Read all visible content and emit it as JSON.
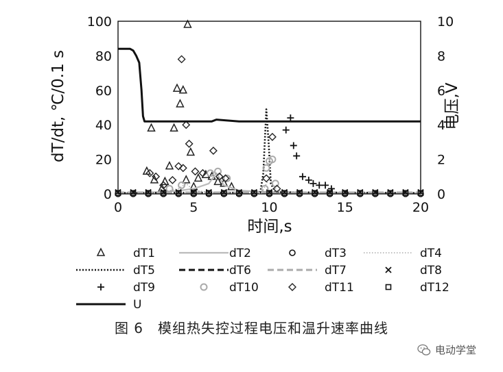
{
  "caption": "图 6　模组热失控过程电压和温升速率曲线",
  "watermark": {
    "text": "电动学堂",
    "icon": "wechat-icon"
  },
  "chart_data": {
    "type": "scatter",
    "xlabel": "时间,s",
    "ylabel_left": "dT/dt, ℃/0.1 s",
    "ylabel_right": "电压,V",
    "xlim": [
      0,
      20
    ],
    "ylim_left": [
      0,
      100
    ],
    "ylim_right": [
      0,
      10
    ],
    "xticks": [
      "0",
      "5",
      "10",
      "15",
      "20"
    ],
    "yticks_left": [
      "0",
      "20",
      "40",
      "60",
      "80",
      "100"
    ],
    "yticks_right": [
      "0",
      "2",
      "4",
      "6",
      "8",
      "10"
    ],
    "grid": false,
    "legend_position": "bottom",
    "series": [
      {
        "name": "dT1",
        "marker": "triangle",
        "axis": "left",
        "points": [
          [
            1.9,
            13
          ],
          [
            2.2,
            38
          ],
          [
            2.4,
            8
          ],
          [
            2.9,
            3
          ],
          [
            3.1,
            7
          ],
          [
            3.4,
            16
          ],
          [
            3.7,
            38
          ],
          [
            3.9,
            61
          ],
          [
            4.1,
            52
          ],
          [
            4.3,
            60
          ],
          [
            4.5,
            8
          ],
          [
            4.6,
            98
          ],
          [
            4.8,
            24
          ],
          [
            5.0,
            4
          ],
          [
            5.3,
            9
          ],
          [
            5.8,
            11
          ],
          [
            6.2,
            10
          ],
          [
            6.6,
            7
          ],
          [
            7.0,
            6
          ],
          [
            7.5,
            4
          ]
        ]
      },
      {
        "name": "dT2",
        "line": "solid-gray",
        "axis": "left",
        "points": [
          [
            0,
            0.5
          ],
          [
            1,
            0.6
          ],
          [
            2,
            0.8
          ],
          [
            3,
            1.2
          ],
          [
            4,
            1.8
          ],
          [
            5,
            3
          ],
          [
            6,
            6
          ],
          [
            6.5,
            12
          ],
          [
            7,
            5
          ],
          [
            8,
            2
          ],
          [
            10,
            1
          ],
          [
            12,
            0.6
          ],
          [
            20,
            0.5
          ]
        ]
      },
      {
        "name": "dT3",
        "marker": "circle",
        "axis": "left",
        "points": [
          [
            0,
            0
          ],
          [
            1,
            0
          ],
          [
            2,
            0
          ],
          [
            3,
            0
          ],
          [
            4,
            0
          ],
          [
            5,
            0
          ],
          [
            6,
            0
          ],
          [
            7,
            0
          ],
          [
            8,
            0
          ],
          [
            9,
            0
          ],
          [
            10,
            0
          ],
          [
            11,
            0
          ],
          [
            12,
            0
          ],
          [
            13,
            0
          ],
          [
            14,
            0
          ],
          [
            15,
            0
          ],
          [
            16,
            0
          ],
          [
            17,
            0
          ],
          [
            18,
            0
          ],
          [
            19,
            0
          ],
          [
            20,
            0
          ]
        ]
      },
      {
        "name": "dT4",
        "line": "dotted-gray",
        "axis": "left",
        "points": [
          [
            0,
            0.5
          ],
          [
            3,
            1
          ],
          [
            4,
            3
          ],
          [
            4.5,
            6
          ],
          [
            5,
            2
          ],
          [
            6,
            1
          ],
          [
            9.5,
            1
          ],
          [
            10,
            9
          ],
          [
            10.5,
            2
          ],
          [
            12,
            0.8
          ],
          [
            20,
            0.5
          ]
        ]
      },
      {
        "name": "dT5",
        "line": "dotted-black",
        "axis": "left",
        "points": [
          [
            0,
            0.5
          ],
          [
            9.4,
            0.8
          ],
          [
            9.6,
            12
          ],
          [
            9.8,
            49
          ],
          [
            9.95,
            30
          ],
          [
            10.1,
            6
          ],
          [
            10.4,
            1
          ],
          [
            20,
            0.5
          ]
        ]
      },
      {
        "name": "dT6",
        "line": "dashed-black",
        "axis": "left",
        "points": [
          [
            0,
            0.5
          ],
          [
            20,
            0.5
          ]
        ]
      },
      {
        "name": "dT7",
        "line": "dashed-gray",
        "axis": "left",
        "points": [
          [
            0,
            0.8
          ],
          [
            20,
            0.8
          ]
        ]
      },
      {
        "name": "dT8",
        "marker": "x",
        "axis": "left",
        "points": [
          [
            0,
            1
          ],
          [
            1,
            1
          ],
          [
            2,
            1
          ],
          [
            3,
            1
          ],
          [
            4,
            1
          ],
          [
            5,
            1
          ],
          [
            6,
            1
          ],
          [
            7,
            1
          ],
          [
            8,
            1
          ],
          [
            9,
            1
          ],
          [
            10,
            1
          ],
          [
            11,
            1
          ],
          [
            12,
            1
          ],
          [
            13,
            1
          ],
          [
            14,
            1
          ],
          [
            15,
            1
          ],
          [
            16,
            1
          ],
          [
            17,
            1
          ],
          [
            18,
            1
          ],
          [
            19,
            1
          ],
          [
            20,
            1
          ]
        ]
      },
      {
        "name": "dT9",
        "marker": "plus",
        "axis": "left",
        "points": [
          [
            11.1,
            37
          ],
          [
            11.4,
            44
          ],
          [
            11.6,
            28
          ],
          [
            11.8,
            22
          ],
          [
            12.2,
            10
          ],
          [
            12.6,
            8
          ],
          [
            12.9,
            6
          ],
          [
            13.3,
            5
          ],
          [
            13.7,
            5
          ],
          [
            14.1,
            3
          ]
        ]
      },
      {
        "name": "dT10",
        "marker": "circle-gray",
        "axis": "left",
        "points": [
          [
            3.4,
            3
          ],
          [
            4.2,
            5
          ],
          [
            6.1,
            12
          ],
          [
            6.6,
            13
          ],
          [
            7.2,
            9
          ],
          [
            9.7,
            3
          ],
          [
            9.8,
            15
          ],
          [
            10.0,
            19
          ],
          [
            10.2,
            20
          ],
          [
            10.4,
            6
          ]
        ]
      },
      {
        "name": "dT11",
        "marker": "diamond",
        "axis": "left",
        "points": [
          [
            2.1,
            12
          ],
          [
            2.5,
            10
          ],
          [
            3.0,
            5
          ],
          [
            3.6,
            8
          ],
          [
            4.0,
            16
          ],
          [
            4.2,
            78
          ],
          [
            4.3,
            15
          ],
          [
            4.5,
            40
          ],
          [
            4.7,
            29
          ],
          [
            5.1,
            13
          ],
          [
            5.6,
            12
          ],
          [
            6.3,
            25
          ],
          [
            6.7,
            10
          ],
          [
            7.1,
            9
          ],
          [
            9.8,
            9
          ],
          [
            10.2,
            33
          ],
          [
            10.5,
            3
          ]
        ]
      },
      {
        "name": "dT12",
        "marker": "square",
        "axis": "left",
        "points": [
          [
            0,
            0.5
          ],
          [
            1,
            0.5
          ],
          [
            2,
            0.5
          ],
          [
            3,
            0.5
          ],
          [
            4,
            0.5
          ],
          [
            5,
            0.5
          ],
          [
            6,
            0.5
          ],
          [
            7,
            0.5
          ],
          [
            8,
            0.5
          ],
          [
            9,
            0.5
          ],
          [
            10,
            0.5
          ],
          [
            11,
            0.5
          ],
          [
            12,
            0.5
          ],
          [
            13,
            0.5
          ],
          [
            14,
            0.5
          ],
          [
            15,
            0.5
          ],
          [
            16,
            0.5
          ],
          [
            17,
            0.5
          ],
          [
            18,
            0.5
          ],
          [
            19,
            0.5
          ],
          [
            20,
            0.5
          ]
        ]
      },
      {
        "name": "U",
        "line": "solid-black-thick",
        "axis": "right",
        "points": [
          [
            0,
            8.4
          ],
          [
            0.8,
            8.4
          ],
          [
            1.0,
            8.3
          ],
          [
            1.2,
            8.0
          ],
          [
            1.4,
            7.6
          ],
          [
            1.55,
            6.0
          ],
          [
            1.65,
            4.5
          ],
          [
            1.75,
            4.2
          ],
          [
            5,
            4.2
          ],
          [
            6.2,
            4.2
          ],
          [
            6.5,
            4.3
          ],
          [
            8,
            4.2
          ],
          [
            10,
            4.2
          ],
          [
            20,
            4.2
          ]
        ]
      }
    ]
  }
}
